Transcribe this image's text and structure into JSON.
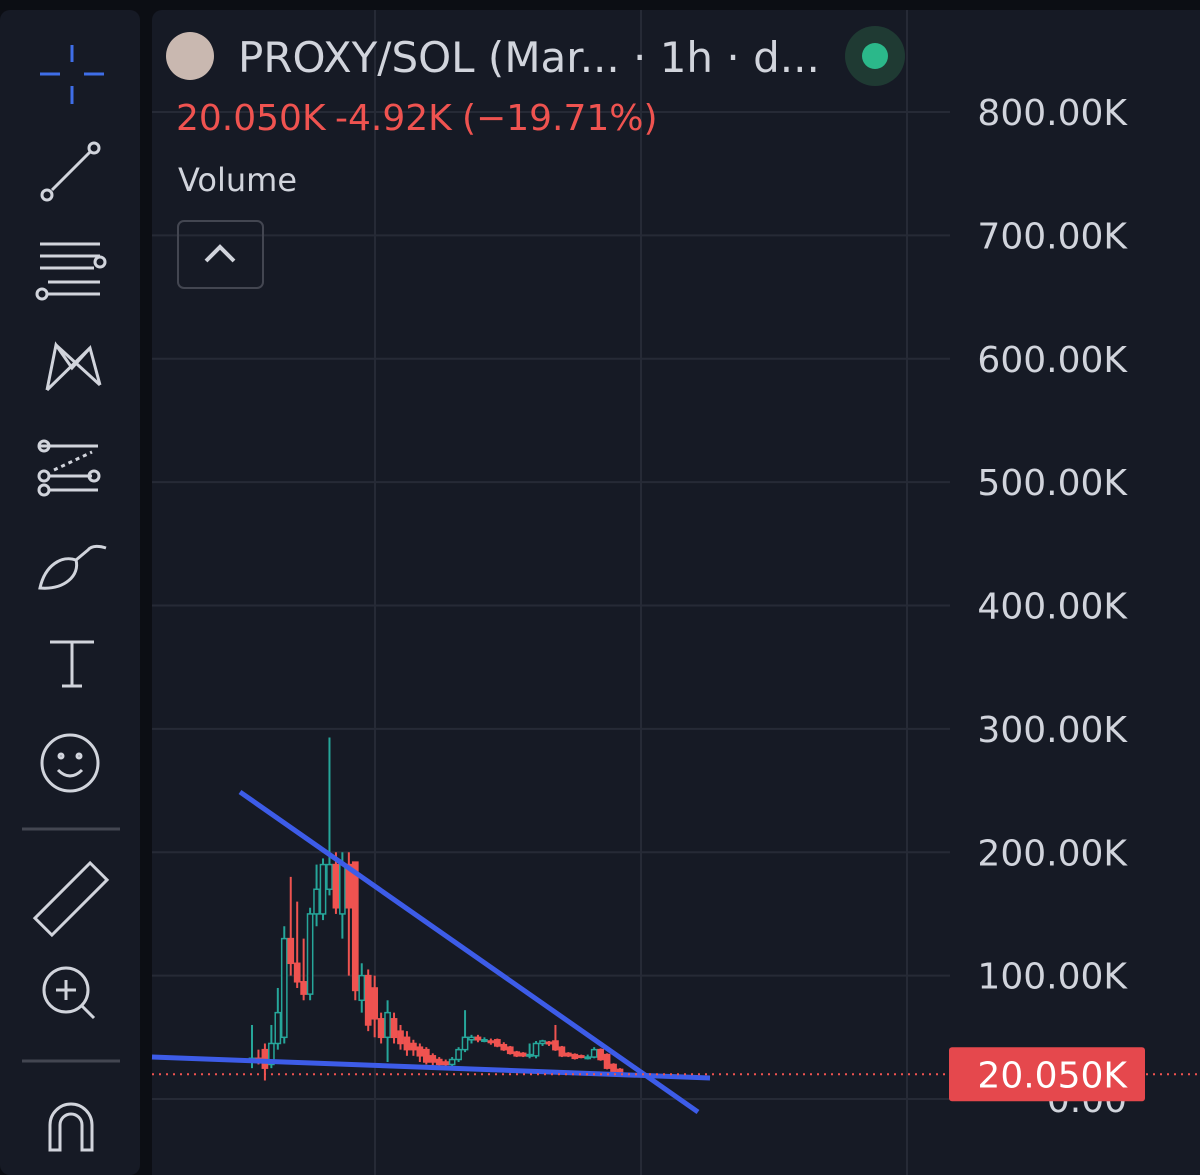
{
  "header": {
    "symbol": "PROXY/SOL (Mar...",
    "interval": "· 1h · d...",
    "change": "-4.92K",
    "change_pct": "(−19.71%)",
    "indicator": "Volume"
  },
  "chart_data": {
    "type": "candlestick",
    "open": [
      30000,
      33000,
      40000,
      28000,
      45000,
      50000,
      130000,
      110000,
      95000,
      85000,
      150000,
      150000,
      170000,
      190000,
      150000,
      190000,
      192000,
      80000,
      100000,
      90000,
      65000,
      50000,
      65000,
      55000,
      50000,
      45000,
      42000,
      40000,
      35000,
      32000,
      30000,
      28000,
      32000,
      40000,
      48000,
      50000,
      48000,
      47000,
      48000,
      44000,
      42000,
      38000,
      37000,
      35000,
      35000,
      45000,
      46000,
      47000,
      42000,
      37000,
      36000,
      35000,
      33000,
      34000,
      40000,
      36000,
      28000,
      24000
    ],
    "high": [
      60000,
      40000,
      45000,
      60000,
      90000,
      140000,
      180000,
      160000,
      130000,
      155000,
      190000,
      195000,
      293000,
      200000,
      200000,
      200000,
      192000,
      110000,
      105000,
      100000,
      70000,
      80000,
      70000,
      60000,
      55000,
      48000,
      45000,
      42000,
      37000,
      34000,
      32000,
      34000,
      42000,
      72000,
      52000,
      52000,
      50000,
      49000,
      49000,
      46000,
      43000,
      39000,
      38000,
      45000,
      47000,
      48000,
      47000,
      60000,
      43000,
      38000,
      37000,
      36000,
      36000,
      42000,
      41000,
      37000,
      29000,
      25000
    ],
    "low": [
      25000,
      28000,
      15000,
      25000,
      40000,
      45000,
      100000,
      90000,
      80000,
      80000,
      140000,
      145000,
      165000,
      150000,
      130000,
      100000,
      80000,
      70000,
      55000,
      50000,
      45000,
      30000,
      45000,
      40000,
      35000,
      35000,
      30000,
      28000,
      27000,
      26000,
      25000,
      26000,
      30000,
      38000,
      45000,
      46000,
      46000,
      44000,
      42000,
      39000,
      36000,
      34000,
      34000,
      33000,
      33000,
      43000,
      43000,
      39000,
      34000,
      34000,
      32000,
      33000,
      32000,
      33000,
      31000,
      24000,
      21000,
      19000
    ],
    "close": [
      33000,
      32000,
      25000,
      45000,
      70000,
      130000,
      110000,
      95000,
      85000,
      150000,
      170000,
      190000,
      190000,
      155000,
      190000,
      155000,
      88000,
      100000,
      60000,
      65000,
      50000,
      70000,
      50000,
      45000,
      40000,
      40000,
      35000,
      30000,
      30000,
      28000,
      28000,
      32000,
      40000,
      50000,
      50000,
      48000,
      48000,
      46000,
      43000,
      40000,
      37000,
      35000,
      35000,
      36000,
      45000,
      47000,
      45000,
      40000,
      35000,
      35000,
      33000,
      34000,
      34000,
      40000,
      32000,
      25000,
      22000,
      20050
    ],
    "up_color": "#26a69a",
    "down_color": "#ef5350",
    "ylim": [
      0,
      800000
    ],
    "yticks": [
      {
        "value": 0,
        "label": "0.00"
      },
      {
        "value": 100000,
        "label": "100.00K"
      },
      {
        "value": 200000,
        "label": "200.00K"
      },
      {
        "value": 300000,
        "label": "300.00K"
      },
      {
        "value": 400000,
        "label": "400.00K"
      },
      {
        "value": 500000,
        "label": "500.00K"
      },
      {
        "value": 600000,
        "label": "600.00K"
      },
      {
        "value": 700000,
        "label": "700.00K"
      },
      {
        "value": 800000,
        "label": "800.00K"
      }
    ],
    "grid": true,
    "last_price": {
      "value": 20050,
      "label": "20.050K"
    }
  }
}
